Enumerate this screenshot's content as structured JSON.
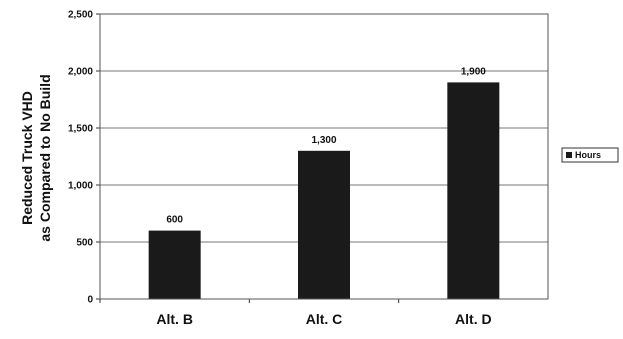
{
  "chart_data": {
    "type": "bar",
    "categories": [
      "Alt. B",
      "Alt. C",
      "Alt. D"
    ],
    "series": [
      {
        "name": "Hours",
        "values": [
          600,
          1300,
          1900
        ],
        "color": "#1a1a1a"
      }
    ],
    "data_labels": [
      "600",
      "1,300",
      "1,900"
    ],
    "ylabel_lines": [
      "Reduced Truck VHD",
      "as Compared to No Build"
    ],
    "ylim": [
      0,
      2500
    ],
    "yticks": [
      0,
      500,
      1000,
      1500,
      2000,
      2500
    ],
    "ytick_labels": [
      "0",
      "500",
      "1,000",
      "1,500",
      "2,000",
      "2,500"
    ],
    "grid": true,
    "legend_position": "right"
  }
}
